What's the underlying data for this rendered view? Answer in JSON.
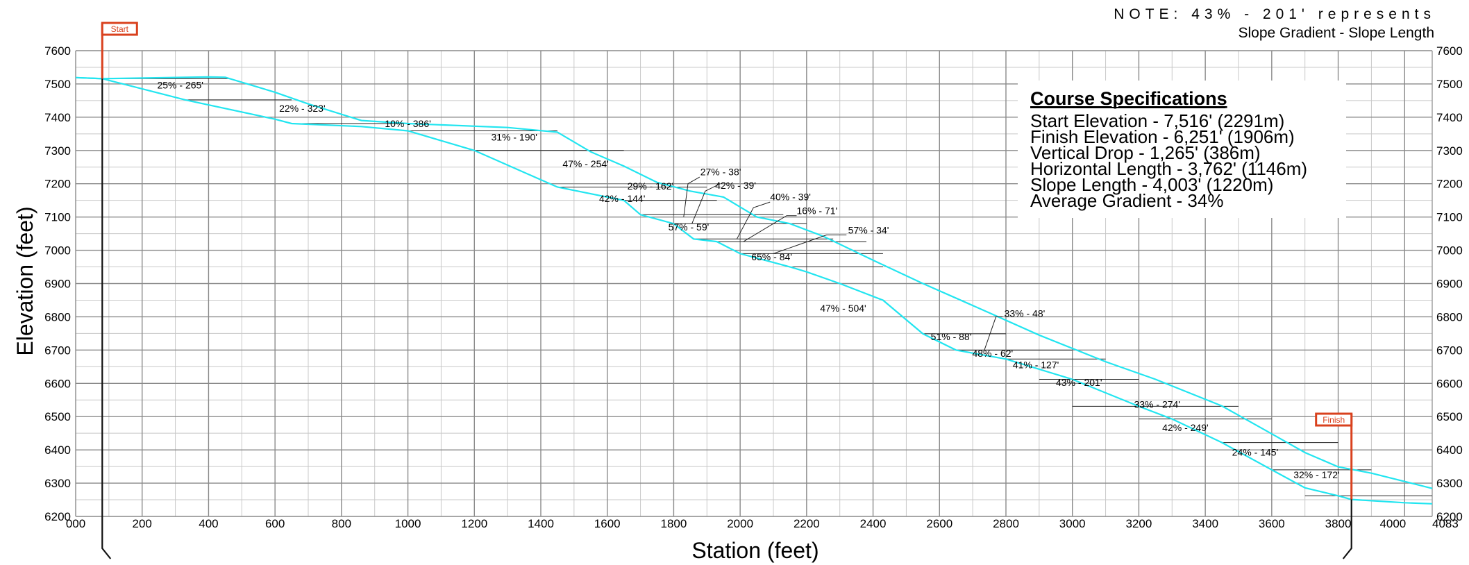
{
  "chart_data": {
    "type": "line",
    "xlabel": "Station (feet)",
    "ylabel": "Elevation (feet)",
    "xlim": [
      0,
      4083
    ],
    "ylim": [
      6200,
      7600
    ],
    "x_ticks": [
      "000",
      "200",
      "400",
      "600",
      "800",
      "1000",
      "1200",
      "1400",
      "1600",
      "1800",
      "2000",
      "2200",
      "2400",
      "2600",
      "2800",
      "3000",
      "3200",
      "3400",
      "3600",
      "3800",
      "4000",
      "4083"
    ],
    "x_tick_values": [
      0,
      200,
      400,
      600,
      800,
      1000,
      1200,
      1400,
      1600,
      1800,
      2000,
      2200,
      2400,
      2600,
      2800,
      3000,
      3200,
      3400,
      3600,
      3800,
      4000,
      4083
    ],
    "y_ticks": [
      "6200",
      "6300",
      "6400",
      "6500",
      "6600",
      "6700",
      "6800",
      "6900",
      "7000",
      "7100",
      "7200",
      "7300",
      "7400",
      "7500",
      "7600"
    ],
    "y_tick_values": [
      6200,
      6300,
      6400,
      6500,
      6600,
      6700,
      6800,
      6900,
      7000,
      7100,
      7200,
      7300,
      7400,
      7500,
      7600
    ],
    "grid": true,
    "note": {
      "line1": "NOTE: 43% - 201' represents",
      "line2": "Slope Gradient - Slope Length"
    },
    "start_label": "Start",
    "finish_label": "Finish",
    "start_station": 80,
    "finish_station": 3840,
    "specs": {
      "title": "Course Specifications",
      "lines": [
        "Start Elevation - 7,516'  (2291m)",
        "Finish Elevation - 6,251'  (1906m)",
        "Vertical Drop -  1,265'  (386m)",
        "Horizontal Length -  3,762'  (1146m)",
        "Slope Length - 4,003'  (1220m)",
        "Average Gradient - 34%"
      ]
    },
    "series": [
      {
        "color": "#22e5f0",
        "x": [
          0,
          80,
          330,
          600,
          650,
          860,
          1000,
          1200,
          1450,
          1650,
          1700,
          1800,
          1860,
          1930,
          2000,
          2150,
          2200,
          2300,
          2430,
          2550,
          2650,
          2800,
          3000,
          3200,
          3300,
          3450,
          3600,
          3700,
          3800,
          3840,
          4000,
          4083
        ],
        "y": [
          7519,
          7516,
          7452,
          7394,
          7381,
          7372,
          7359,
          7300,
          7190,
          7150,
          7107,
          7080,
          7034,
          7026,
          6990,
          6950,
          6935,
          6900,
          6850,
          6749,
          6700,
          6673,
          6612,
          6531,
          6493,
          6422,
          6340,
          6286,
          6262,
          6251,
          6241,
          6238
        ]
      },
      {
        "color": "#22e5f0",
        "x": [
          0,
          80,
          400,
          450,
          600,
          700,
          860,
          1000,
          1300,
          1450,
          1550,
          1650,
          1750,
          1850,
          1950,
          2050,
          2150,
          2250,
          2400,
          2550,
          2750,
          2900,
          3100,
          3250,
          3450,
          3600,
          3700,
          3800,
          3900,
          4083
        ],
        "y": [
          7519,
          7516,
          7521,
          7520,
          7475,
          7440,
          7390,
          7381,
          7369,
          7355,
          7296,
          7253,
          7204,
          7178,
          7160,
          7100,
          7080,
          7042,
          6970,
          6900,
          6812,
          6745,
          6665,
          6612,
          6532,
          6448,
          6392,
          6349,
          6330,
          6284
        ]
      }
    ],
    "segments": [
      {
        "label": "25% - 265'"
      },
      {
        "label": "22% - 323'"
      },
      {
        "label": "10% - 386'"
      },
      {
        "label": "31% - 190'"
      },
      {
        "label": "47% - 254'"
      },
      {
        "label": "27% - 38'"
      },
      {
        "label": "29% - 162'"
      },
      {
        "label": "42% - 39'"
      },
      {
        "label": "42% - 144'"
      },
      {
        "label": "40% - 39'"
      },
      {
        "label": "16% - 71'"
      },
      {
        "label": "57% - 59'"
      },
      {
        "label": "57% - 34'"
      },
      {
        "label": "65% - 84'"
      },
      {
        "label": "47% - 504'"
      },
      {
        "label": "33% - 48'"
      },
      {
        "label": "51% - 88'"
      },
      {
        "label": "48% - 62'"
      },
      {
        "label": "41% - 127'"
      },
      {
        "label": "43% - 201'"
      },
      {
        "label": "33% - 274'"
      },
      {
        "label": "42% - 249'"
      },
      {
        "label": "24% - 145'"
      },
      {
        "label": "32% - 172'"
      }
    ]
  }
}
